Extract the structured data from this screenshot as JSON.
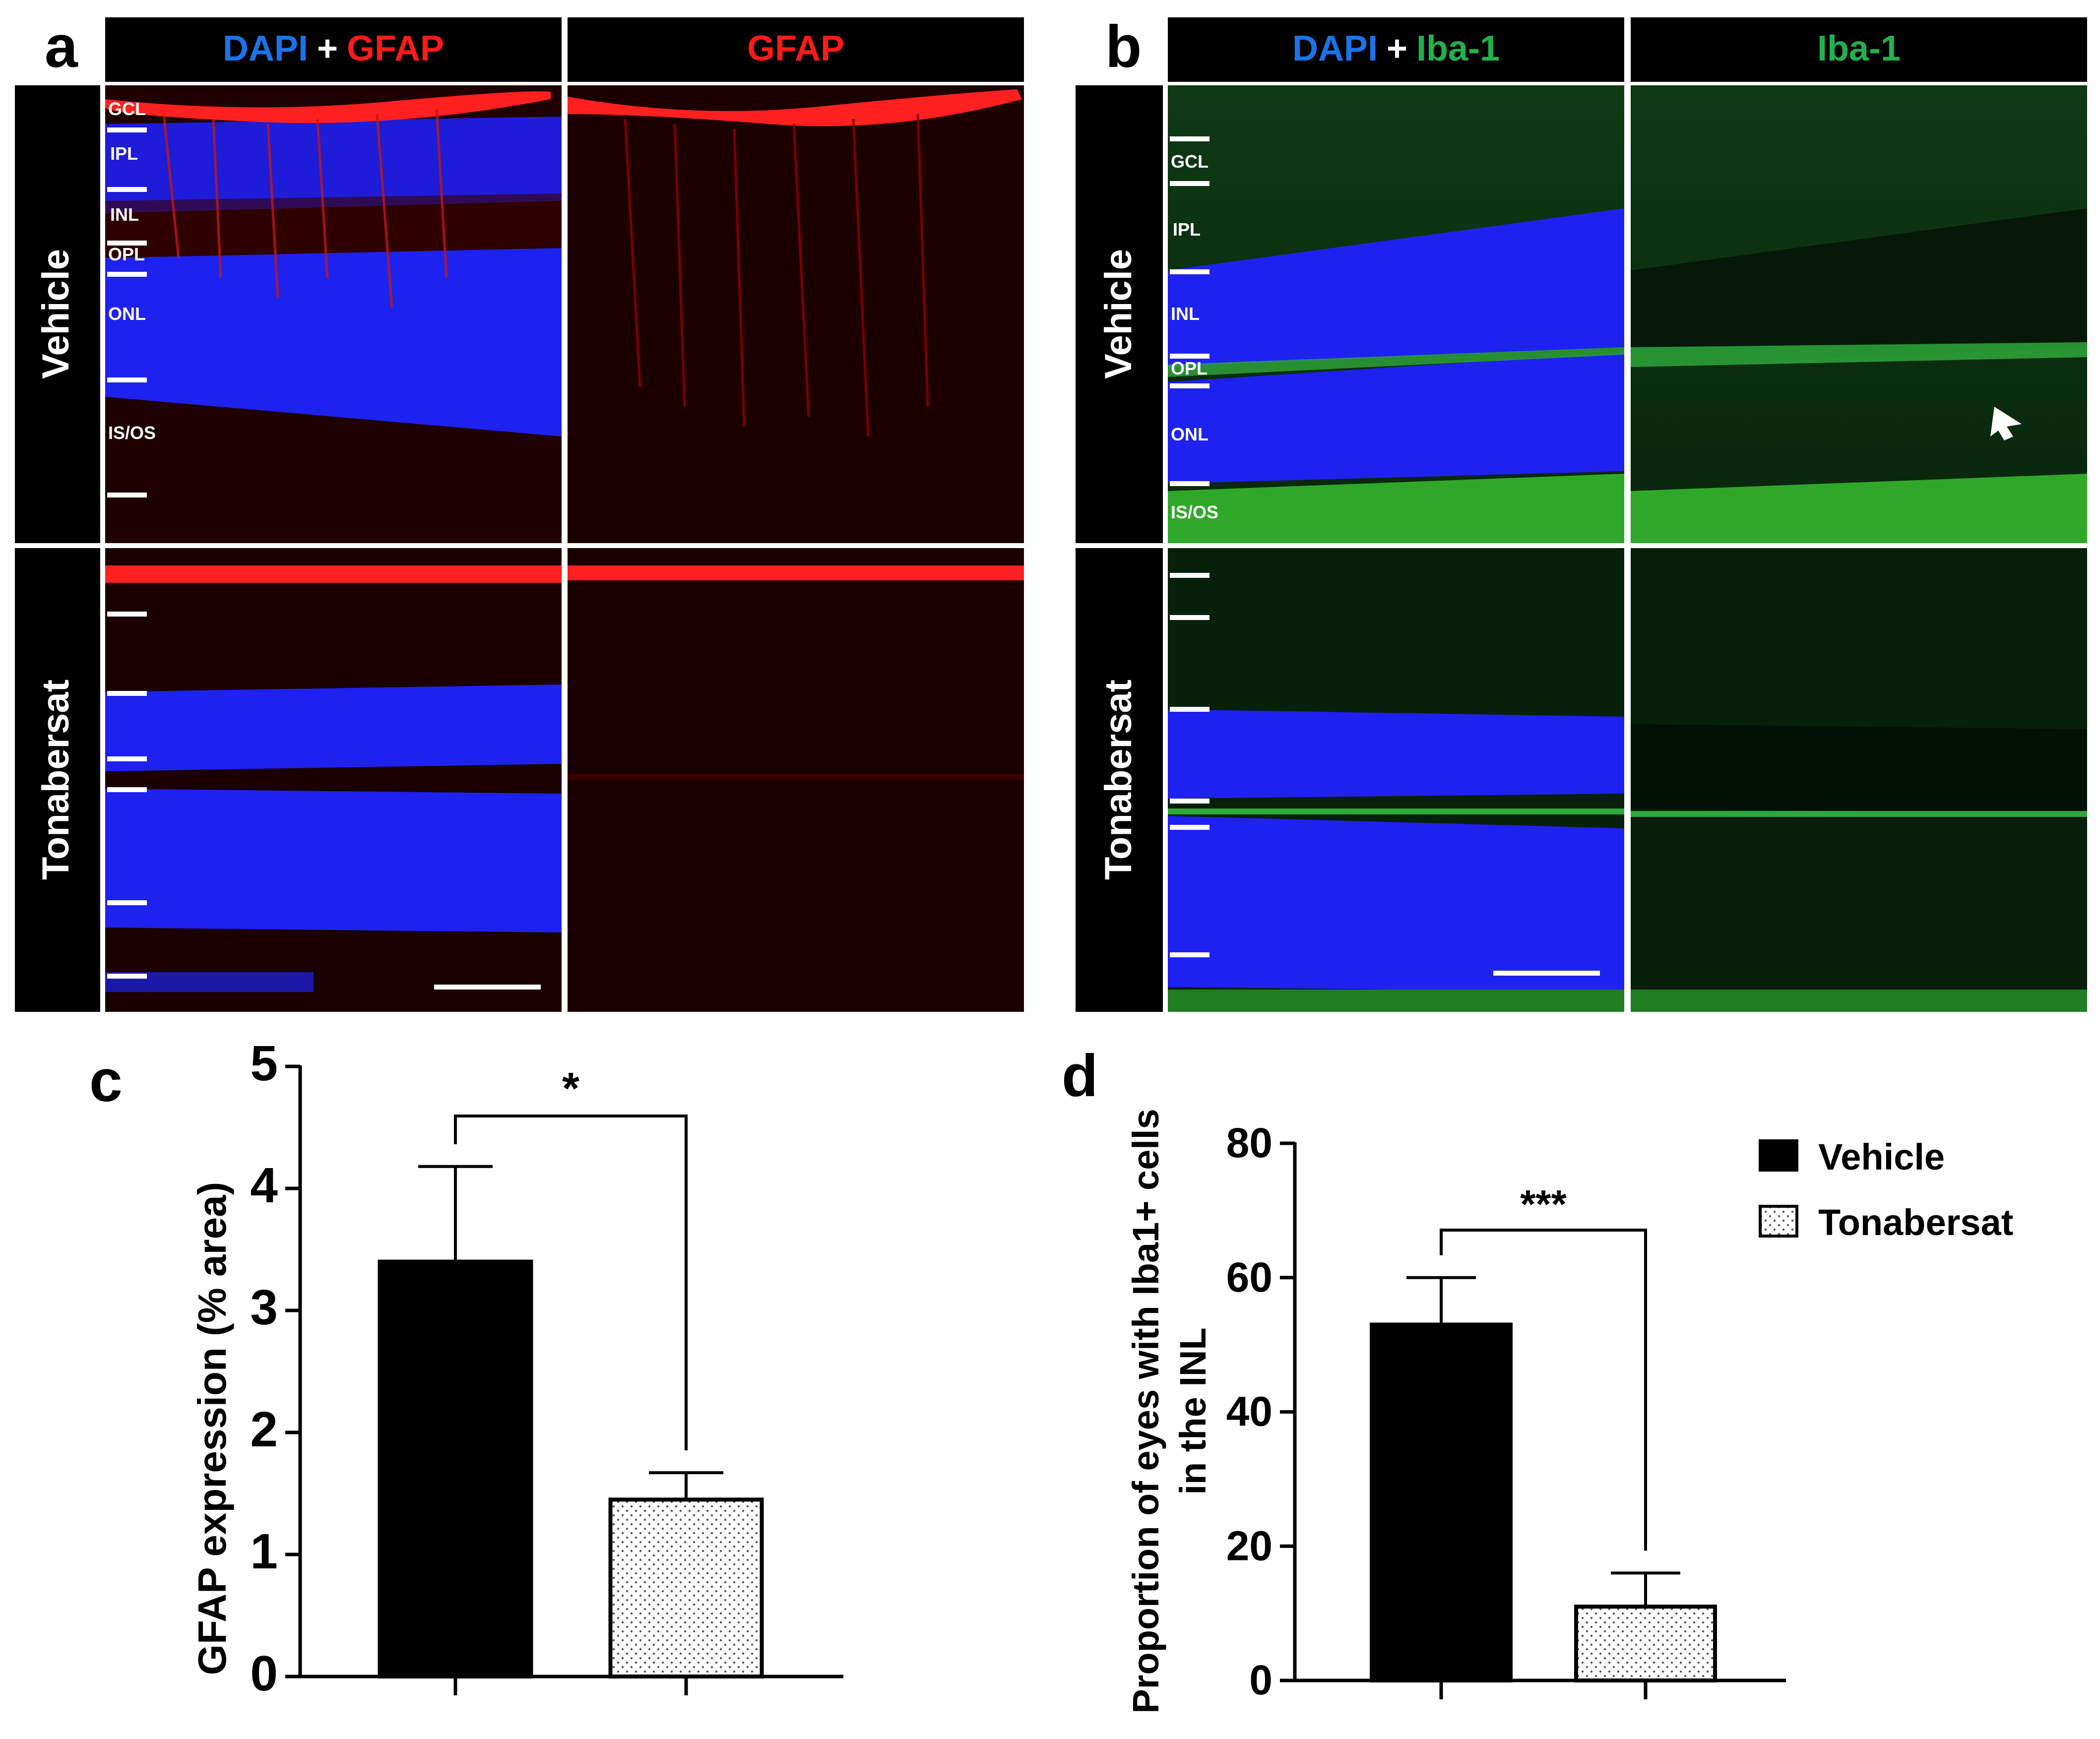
{
  "panel_letters": {
    "a": "a",
    "b": "b",
    "c": "c",
    "d": "d"
  },
  "panel_a": {
    "header_left": {
      "dapi": "DAPI",
      "plus": "+",
      "marker": "GFAP"
    },
    "header_right": "GFAP",
    "rows": [
      "Vehicle",
      "Tonabersat"
    ],
    "layers": [
      "GCL",
      "IPL",
      "INL",
      "OPL",
      "ONL",
      "IS/OS"
    ]
  },
  "panel_b": {
    "header_left": {
      "dapi": "DAPI",
      "plus": "+",
      "marker": "Iba-1"
    },
    "header_right": "Iba-1",
    "rows": [
      "Vehicle",
      "Tonabersat"
    ],
    "layers": [
      "GCL",
      "IPL",
      "INL",
      "OPL",
      "ONL",
      "IS/OS"
    ]
  },
  "colors": {
    "dapi": "#1a73e8",
    "gfap": "#ff1a1a",
    "iba1": "#22b14c",
    "bar_vehicle": "#000000",
    "bar_tonabersat": "#ffffff"
  },
  "chart_data": [
    {
      "type": "bar",
      "panel": "c",
      "categories": [
        "Vehicle",
        "Tonabersat"
      ],
      "values": [
        3.4,
        1.45
      ],
      "errors": [
        0.78,
        0.22
      ],
      "ylabel": "GFAP expression (% area)",
      "yticks": [
        "0",
        "1",
        "2",
        "3",
        "4",
        "5"
      ],
      "ylim": [
        0,
        5
      ],
      "significance": "*"
    },
    {
      "type": "bar",
      "panel": "d",
      "categories": [
        "Vehicle",
        "Tonabersat"
      ],
      "values": [
        53,
        11
      ],
      "errors": [
        7,
        5
      ],
      "ylabel_line1": "Proportion of eyes with Iba1+ cells",
      "ylabel_line2": "in the INL",
      "yticks": [
        "0",
        "20",
        "40",
        "60",
        "80"
      ],
      "ylim": [
        0,
        80
      ],
      "significance": "***",
      "legend": [
        "Vehicle",
        "Tonabersat"
      ]
    }
  ]
}
